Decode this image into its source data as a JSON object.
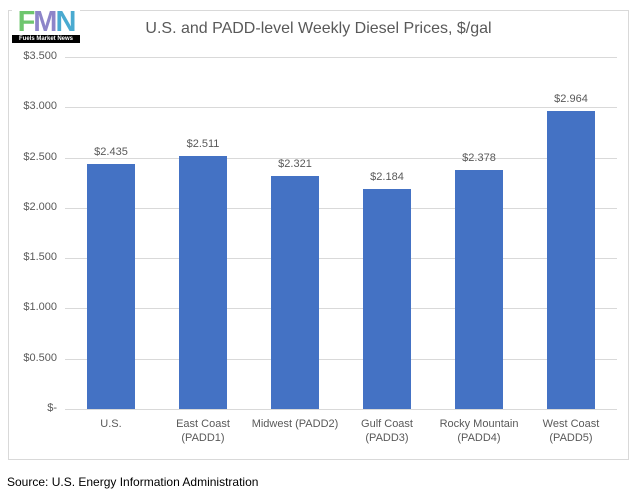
{
  "logo": {
    "letter_f": "F",
    "letter_m": "M",
    "letter_n": "N",
    "caption": "Fuels Market News"
  },
  "chart_data": {
    "type": "bar",
    "title": "U.S. and PADD-level Weekly Diesel Prices, $/gal",
    "categories": [
      "U.S.",
      "East Coast (PADD1)",
      "Midwest (PADD2)",
      "Gulf Coast (PADD3)",
      "Rocky Mountain (PADD4)",
      "West Coast (PADD5)"
    ],
    "values": [
      2.435,
      2.511,
      2.321,
      2.184,
      2.378,
      2.964
    ],
    "value_labels": [
      "$2.435",
      "$2.511",
      "$2.321",
      "$2.184",
      "$2.378",
      "$2.964"
    ],
    "xlabel": "",
    "ylabel": "",
    "ylim": [
      0,
      3.5
    ],
    "ytick_step": 0.5,
    "ytick_labels": [
      "$-",
      "$0.500",
      "$1.000",
      "$1.500",
      "$2.000",
      "$2.500",
      "$3.000",
      "$3.500"
    ],
    "grid": true,
    "legend": "none",
    "bar_color": "#4472c4",
    "gridline_color": "#d9d9d9",
    "text_color": "#595959"
  },
  "footer": {
    "source": "Source: U.S. Energy Information Administration"
  }
}
